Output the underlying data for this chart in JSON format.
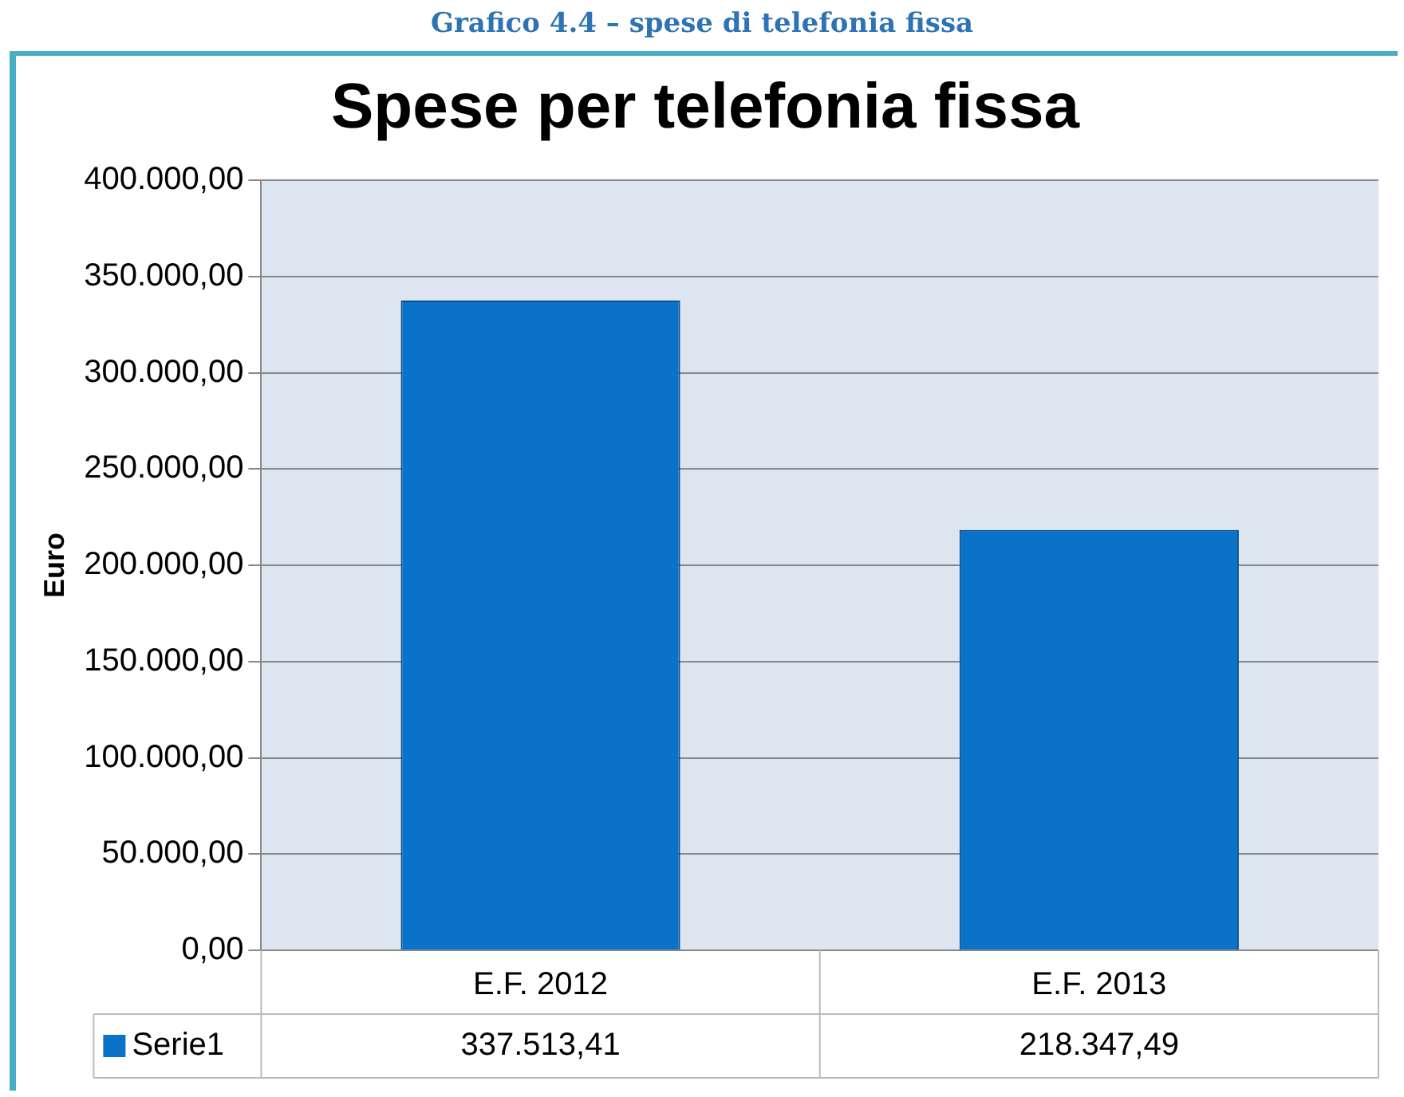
{
  "chart_data": {
    "type": "bar",
    "title": "Spese per telefonia fissa",
    "ylabel": "Euro",
    "annotations": [
      "Grafico 4.4 – spese di telefonia fissa"
    ],
    "categories": [
      "E.F. 2012",
      "E.F. 2013"
    ],
    "series": [
      {
        "name": "Serie1",
        "color": "#0a72c8",
        "values": [
          337513.41,
          218347.49
        ],
        "value_labels": [
          "337.513,41",
          "218.347,49"
        ]
      }
    ],
    "ylim": [
      0,
      400000
    ],
    "yticks": [
      {
        "value": 0,
        "label": "0,00"
      },
      {
        "value": 50000,
        "label": "50.000,00"
      },
      {
        "value": 100000,
        "label": "100.000,00"
      },
      {
        "value": 150000,
        "label": "150.000,00"
      },
      {
        "value": 200000,
        "label": "200.000,00"
      },
      {
        "value": 250000,
        "label": "250.000,00"
      },
      {
        "value": 300000,
        "label": "300.000,00"
      },
      {
        "value": 350000,
        "label": "350.000,00"
      },
      {
        "value": 400000,
        "label": "400.000,00"
      }
    ],
    "grid": "y",
    "legend": "bottom"
  }
}
